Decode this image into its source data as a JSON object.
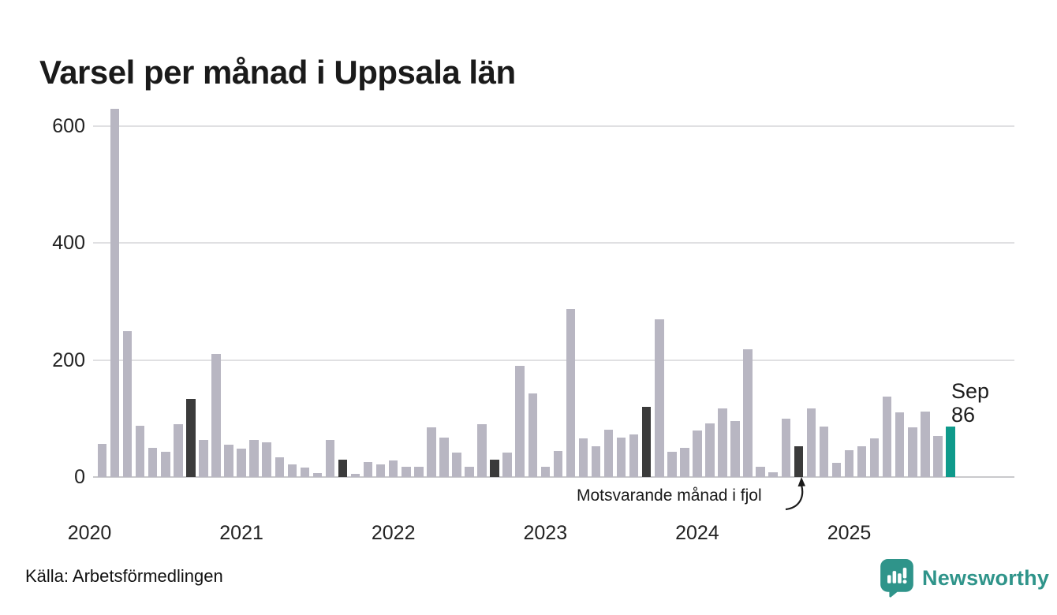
{
  "title": "Varsel per månad i Uppsala län",
  "source": "Källa: Arbetsförmedlingen",
  "annotation": {
    "text": "Motsvarande månad i fjol"
  },
  "current_point_label": {
    "line1": "Sep",
    "line2": "86"
  },
  "branding": {
    "name": "Newsworthy"
  },
  "colors": {
    "bar": "#b8b6c2",
    "bar_prev_year_month": "#3b3b3b",
    "bar_current": "#0f9a8b",
    "brand": "#2f948a",
    "grid": "#e0e0e2",
    "axis_line": "#c9c9cc",
    "axis_text": "#222222"
  },
  "chart_data": {
    "type": "bar",
    "title": "Varsel per månad i Uppsala län",
    "xlabel": "",
    "ylabel": "",
    "grid": true,
    "ylim": [
      0,
      650
    ],
    "yticks": [
      0,
      200,
      400,
      600
    ],
    "year_ticks": [
      "2020",
      "2021",
      "2022",
      "2023",
      "2024",
      "2025"
    ],
    "x_start": "2020-02",
    "x_end": "2025-09",
    "categories": [
      "2020-02",
      "2020-03",
      "2020-04",
      "2020-05",
      "2020-06",
      "2020-07",
      "2020-08",
      "2020-09",
      "2020-10",
      "2020-11",
      "2020-12",
      "2021-01",
      "2021-02",
      "2021-03",
      "2021-04",
      "2021-05",
      "2021-06",
      "2021-07",
      "2021-08",
      "2021-09",
      "2021-10",
      "2021-11",
      "2021-12",
      "2022-01",
      "2022-02",
      "2022-03",
      "2022-04",
      "2022-05",
      "2022-06",
      "2022-07",
      "2022-08",
      "2022-09",
      "2022-10",
      "2022-11",
      "2022-12",
      "2023-01",
      "2023-02",
      "2023-03",
      "2023-04",
      "2023-05",
      "2023-06",
      "2023-07",
      "2023-08",
      "2023-09",
      "2023-10",
      "2023-11",
      "2023-12",
      "2024-01",
      "2024-02",
      "2024-03",
      "2024-04",
      "2024-05",
      "2024-06",
      "2024-07",
      "2024-08",
      "2024-09",
      "2024-10",
      "2024-11",
      "2024-12",
      "2025-01",
      "2025-02",
      "2025-03",
      "2025-04",
      "2025-05",
      "2025-06",
      "2025-07",
      "2025-08",
      "2025-09"
    ],
    "values": [
      57,
      630,
      249,
      88,
      50,
      43,
      90,
      133,
      63,
      210,
      55,
      48,
      63,
      60,
      34,
      21,
      16,
      7,
      64,
      30,
      6,
      26,
      22,
      29,
      17,
      17,
      85,
      68,
      42,
      17,
      90,
      30,
      42,
      190,
      143,
      17,
      45,
      287,
      66,
      52,
      81,
      67,
      73,
      120,
      270,
      43,
      50,
      80,
      92,
      118,
      96,
      218,
      18,
      8,
      100,
      53,
      118,
      87,
      24,
      46,
      53,
      66,
      138,
      110,
      85,
      112,
      70,
      86
    ],
    "kinds": [
      "n",
      "n",
      "n",
      "n",
      "n",
      "n",
      "n",
      "fjol",
      "n",
      "n",
      "n",
      "n",
      "n",
      "n",
      "n",
      "n",
      "n",
      "n",
      "n",
      "fjol",
      "n",
      "n",
      "n",
      "n",
      "n",
      "n",
      "n",
      "n",
      "n",
      "n",
      "n",
      "fjol",
      "n",
      "n",
      "n",
      "n",
      "n",
      "n",
      "n",
      "n",
      "n",
      "n",
      "n",
      "fjol",
      "n",
      "n",
      "n",
      "n",
      "n",
      "n",
      "n",
      "n",
      "n",
      "n",
      "n",
      "fjol",
      "n",
      "n",
      "n",
      "n",
      "n",
      "n",
      "n",
      "n",
      "n",
      "n",
      "n",
      "current"
    ],
    "legend_note": "Dark bars mark September of each previous year (Motsvarande månad i fjol); teal bar is the current month Sep 2025 = 86."
  }
}
